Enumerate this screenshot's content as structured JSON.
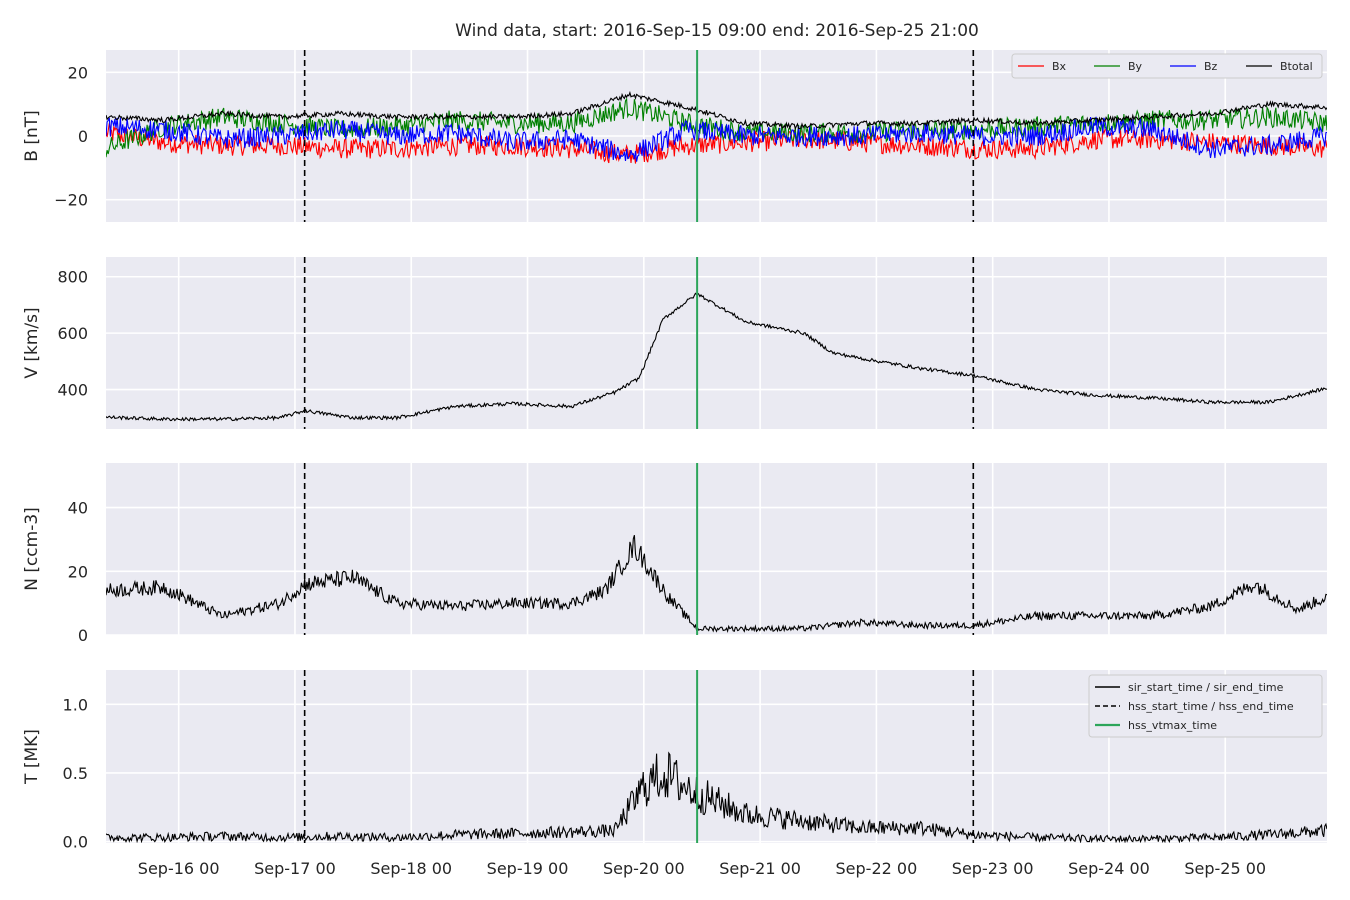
{
  "chart_data": {
    "type": "line",
    "title": "Wind data, start: 2016-Sep-15 09:00  end: 2016-Sep-25 21:00",
    "x_range": [
      "2016-09-15T09:00",
      "2016-09-25T21:00"
    ],
    "x_tick_labels": [
      "Sep-16 00",
      "Sep-17 00",
      "Sep-18 00",
      "Sep-19 00",
      "Sep-20 00",
      "Sep-21 00",
      "Sep-22 00",
      "Sep-23 00",
      "Sep-24 00",
      "Sep-25 00"
    ],
    "x_tick_times": [
      "2016-09-16T00:00",
      "2016-09-17T00:00",
      "2016-09-18T00:00",
      "2016-09-19T00:00",
      "2016-09-20T00:00",
      "2016-09-21T00:00",
      "2016-09-22T00:00",
      "2016-09-23T00:00",
      "2016-09-24T00:00",
      "2016-09-25T00:00"
    ],
    "grid": true,
    "event_lines": [
      {
        "time": "2016-09-17T02:00",
        "style": "dashed",
        "color": "#000000"
      },
      {
        "time": "2016-09-20T11:00",
        "style": "solid",
        "color": "#2ca55a"
      },
      {
        "time": "2016-09-22T20:00",
        "style": "dashed",
        "color": "#000000"
      }
    ],
    "panels": [
      {
        "ylabel": "B [nT]",
        "ylim": [
          -27,
          27
        ],
        "yticks": [
          20,
          0,
          -20
        ],
        "ytick_labels": [
          "20",
          "0",
          "−20"
        ],
        "legend": "top-right",
        "series": [
          {
            "name": "Bx",
            "color": "#ff0000",
            "times": [
              "2016-09-15T09:00",
              "2016-09-15T21:00",
              "2016-09-16T09:00",
              "2016-09-16T21:00",
              "2016-09-17T09:00",
              "2016-09-17T21:00",
              "2016-09-18T09:00",
              "2016-09-18T21:00",
              "2016-09-19T09:00",
              "2016-09-19T21:00",
              "2016-09-20T09:00",
              "2016-09-20T21:00",
              "2016-09-21T09:00",
              "2016-09-21T21:00",
              "2016-09-22T09:00",
              "2016-09-22T21:00",
              "2016-09-23T09:00",
              "2016-09-23T21:00",
              "2016-09-24T09:00",
              "2016-09-24T21:00",
              "2016-09-25T09:00",
              "2016-09-25T21:00"
            ],
            "values": [
              1,
              -2,
              -3,
              -3,
              -4,
              -4,
              -3,
              -3,
              -4,
              -6,
              -3,
              -2,
              -1,
              -2,
              -3,
              -4,
              -4,
              -1,
              -1,
              -2,
              -3,
              -4
            ]
          },
          {
            "name": "By",
            "color": "#008000",
            "times": [
              "2016-09-15T09:00",
              "2016-09-15T21:00",
              "2016-09-16T09:00",
              "2016-09-16T21:00",
              "2016-09-17T09:00",
              "2016-09-17T21:00",
              "2016-09-18T09:00",
              "2016-09-18T21:00",
              "2016-09-19T09:00",
              "2016-09-19T21:00",
              "2016-09-20T09:00",
              "2016-09-20T21:00",
              "2016-09-21T09:00",
              "2016-09-21T21:00",
              "2016-09-22T09:00",
              "2016-09-22T21:00",
              "2016-09-23T09:00",
              "2016-09-23T21:00",
              "2016-09-24T09:00",
              "2016-09-24T21:00",
              "2016-09-25T09:00",
              "2016-09-25T21:00"
            ],
            "values": [
              -4,
              3,
              6,
              4,
              2,
              3,
              5,
              4,
              4,
              9,
              4,
              1,
              1,
              1,
              2,
              2,
              3,
              4,
              5,
              5,
              6,
              4
            ]
          },
          {
            "name": "Bz",
            "color": "#0000ff",
            "times": [
              "2016-09-15T09:00",
              "2016-09-15T21:00",
              "2016-09-16T09:00",
              "2016-09-16T21:00",
              "2016-09-17T09:00",
              "2016-09-17T21:00",
              "2016-09-18T09:00",
              "2016-09-18T21:00",
              "2016-09-19T09:00",
              "2016-09-19T21:00",
              "2016-09-20T09:00",
              "2016-09-20T21:00",
              "2016-09-21T09:00",
              "2016-09-21T21:00",
              "2016-09-22T09:00",
              "2016-09-22T21:00",
              "2016-09-23T09:00",
              "2016-09-23T21:00",
              "2016-09-24T09:00",
              "2016-09-24T21:00",
              "2016-09-25T09:00",
              "2016-09-25T21:00"
            ],
            "values": [
              3,
              2,
              -1,
              0,
              2,
              0,
              1,
              -2,
              -1,
              -6,
              2,
              0,
              0,
              0,
              1,
              0,
              0,
              3,
              2,
              -4,
              -3,
              0
            ]
          },
          {
            "name": "Btotal",
            "color": "#000000",
            "times": [
              "2016-09-15T09:00",
              "2016-09-15T21:00",
              "2016-09-16T09:00",
              "2016-09-16T21:00",
              "2016-09-17T09:00",
              "2016-09-17T21:00",
              "2016-09-18T09:00",
              "2016-09-18T21:00",
              "2016-09-19T09:00",
              "2016-09-19T21:00",
              "2016-09-20T09:00",
              "2016-09-20T21:00",
              "2016-09-21T09:00",
              "2016-09-21T21:00",
              "2016-09-22T09:00",
              "2016-09-22T21:00",
              "2016-09-23T09:00",
              "2016-09-23T21:00",
              "2016-09-24T09:00",
              "2016-09-24T21:00",
              "2016-09-25T09:00",
              "2016-09-25T21:00"
            ],
            "values": [
              6,
              5,
              7,
              6,
              7,
              6,
              6,
              6,
              7,
              13,
              9,
              4,
              3,
              4,
              4,
              5,
              4,
              5,
              6,
              7,
              10,
              9
            ]
          }
        ]
      },
      {
        "ylabel": "V [km/s]",
        "ylim": [
          260,
          870
        ],
        "yticks": [
          800,
          600,
          400
        ],
        "ytick_labels": [
          "800",
          "600",
          "400"
        ],
        "series": [
          {
            "name": "V",
            "color": "#000000",
            "times": [
              "2016-09-15T09:00",
              "2016-09-15T21:00",
              "2016-09-16T09:00",
              "2016-09-16T21:00",
              "2016-09-17T02:00",
              "2016-09-17T12:00",
              "2016-09-17T21:00",
              "2016-09-18T09:00",
              "2016-09-18T21:00",
              "2016-09-19T09:00",
              "2016-09-19T18:00",
              "2016-09-19T23:00",
              "2016-09-20T04:00",
              "2016-09-20T11:00",
              "2016-09-20T21:00",
              "2016-09-21T09:00",
              "2016-09-21T15:00",
              "2016-09-21T21:00",
              "2016-09-22T09:00",
              "2016-09-22T20:00",
              "2016-09-23T09:00",
              "2016-09-23T21:00",
              "2016-09-24T09:00",
              "2016-09-24T21:00",
              "2016-09-25T09:00",
              "2016-09-25T21:00"
            ],
            "values": [
              302,
              295,
              295,
              300,
              325,
              300,
              300,
              340,
              350,
              340,
              390,
              440,
              650,
              740,
              640,
              600,
              530,
              510,
              475,
              450,
              400,
              380,
              370,
              355,
              355,
              405
            ]
          }
        ]
      },
      {
        "ylabel": "N [ccm-3]",
        "ylim": [
          0,
          54
        ],
        "yticks": [
          40,
          20,
          0
        ],
        "ytick_labels": [
          "40",
          "20",
          "0"
        ],
        "series": [
          {
            "name": "N",
            "color": "#000000",
            "times": [
              "2016-09-15T09:00",
              "2016-09-15T21:00",
              "2016-09-16T09:00",
              "2016-09-16T21:00",
              "2016-09-17T02:00",
              "2016-09-17T12:00",
              "2016-09-17T21:00",
              "2016-09-18T09:00",
              "2016-09-18T21:00",
              "2016-09-19T09:00",
              "2016-09-19T16:00",
              "2016-09-19T22:00",
              "2016-09-20T05:00",
              "2016-09-20T11:00",
              "2016-09-20T21:00",
              "2016-09-21T09:00",
              "2016-09-21T21:00",
              "2016-09-22T09:00",
              "2016-09-22T20:00",
              "2016-09-23T09:00",
              "2016-09-23T21:00",
              "2016-09-24T09:00",
              "2016-09-24T21:00",
              "2016-09-25T06:00",
              "2016-09-25T15:00",
              "2016-09-25T21:00"
            ],
            "values": [
              14,
              15,
              6,
              10,
              16,
              18,
              10,
              9,
              10,
              10,
              14,
              28,
              12,
              2,
              2,
              2,
              4,
              3,
              3,
              6,
              6,
              6,
              9,
              16,
              8,
              12
            ]
          }
        ]
      },
      {
        "ylabel": "T [MK]",
        "ylim": [
          -0.01,
          1.25
        ],
        "yticks": [
          1.0,
          0.5,
          0.0
        ],
        "ytick_labels": [
          "1.0",
          "0.5",
          "0.0"
        ],
        "legend": "top-right",
        "series": [
          {
            "name": "T",
            "color": "#000000",
            "times": [
              "2016-09-15T09:00",
              "2016-09-15T21:00",
              "2016-09-16T09:00",
              "2016-09-16T21:00",
              "2016-09-17T09:00",
              "2016-09-17T21:00",
              "2016-09-18T09:00",
              "2016-09-18T21:00",
              "2016-09-19T09:00",
              "2016-09-19T18:00",
              "2016-09-20T00:00",
              "2016-09-20T04:00",
              "2016-09-20T11:00",
              "2016-09-20T21:00",
              "2016-09-21T09:00",
              "2016-09-21T21:00",
              "2016-09-22T09:00",
              "2016-09-22T20:00",
              "2016-09-23T09:00",
              "2016-09-23T21:00",
              "2016-09-24T09:00",
              "2016-09-24T21:00",
              "2016-09-25T09:00",
              "2016-09-25T21:00"
            ],
            "values": [
              0.03,
              0.03,
              0.04,
              0.03,
              0.04,
              0.03,
              0.05,
              0.06,
              0.07,
              0.08,
              0.4,
              0.5,
              0.35,
              0.2,
              0.15,
              0.1,
              0.1,
              0.05,
              0.03,
              0.02,
              0.02,
              0.03,
              0.05,
              0.08
            ]
          }
        ]
      }
    ],
    "legend_b": [
      "Bx",
      "By",
      "Bz",
      "Btotal"
    ],
    "legend_t": [
      {
        "label": "sir_start_time / sir_end_time",
        "style": "solid",
        "color": "#000000"
      },
      {
        "label": "hss_start_time / hss_end_time",
        "style": "dashed",
        "color": "#000000"
      },
      {
        "label": "hss_vtmax_time",
        "style": "solid",
        "color": "#2ca55a"
      }
    ]
  }
}
